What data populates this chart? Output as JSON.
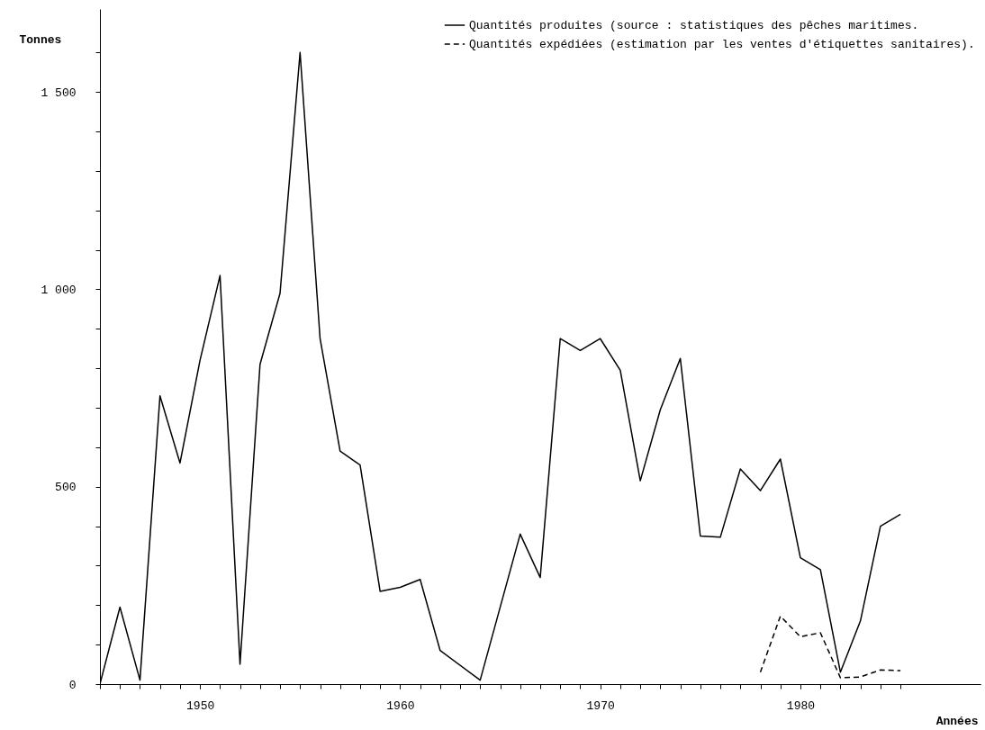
{
  "chart_data": {
    "type": "line",
    "xlabel": "Années",
    "ylabel": "Tonnes",
    "xlim": [
      1945,
      1989
    ],
    "ylim": [
      0,
      1710
    ],
    "xticks": [
      {
        "value": 1945,
        "label": null
      },
      {
        "value": 1946,
        "label": null
      },
      {
        "value": 1947,
        "label": null
      },
      {
        "value": 1948,
        "label": null
      },
      {
        "value": 1949,
        "label": null
      },
      {
        "value": 1950,
        "label": "1950"
      },
      {
        "value": 1951,
        "label": null
      },
      {
        "value": 1952,
        "label": null
      },
      {
        "value": 1953,
        "label": null
      },
      {
        "value": 1954,
        "label": null
      },
      {
        "value": 1955,
        "label": null
      },
      {
        "value": 1956,
        "label": null
      },
      {
        "value": 1957,
        "label": null
      },
      {
        "value": 1958,
        "label": null
      },
      {
        "value": 1959,
        "label": null
      },
      {
        "value": 1960,
        "label": "1960"
      },
      {
        "value": 1961,
        "label": null
      },
      {
        "value": 1962,
        "label": null
      },
      {
        "value": 1963,
        "label": null
      },
      {
        "value": 1964,
        "label": null
      },
      {
        "value": 1965,
        "label": null
      },
      {
        "value": 1966,
        "label": null
      },
      {
        "value": 1967,
        "label": null
      },
      {
        "value": 1968,
        "label": null
      },
      {
        "value": 1969,
        "label": null
      },
      {
        "value": 1970,
        "label": "1970"
      },
      {
        "value": 1971,
        "label": null
      },
      {
        "value": 1972,
        "label": null
      },
      {
        "value": 1973,
        "label": null
      },
      {
        "value": 1974,
        "label": null
      },
      {
        "value": 1975,
        "label": null
      },
      {
        "value": 1976,
        "label": null
      },
      {
        "value": 1977,
        "label": null
      },
      {
        "value": 1978,
        "label": null
      },
      {
        "value": 1979,
        "label": null
      },
      {
        "value": 1980,
        "label": "1980"
      },
      {
        "value": 1981,
        "label": null
      },
      {
        "value": 1982,
        "label": null
      },
      {
        "value": 1983,
        "label": null
      },
      {
        "value": 1984,
        "label": null
      },
      {
        "value": 1985,
        "label": null
      }
    ],
    "yticks": [
      {
        "value": 0,
        "label": "0"
      },
      {
        "value": 100,
        "label": null
      },
      {
        "value": 200,
        "label": null
      },
      {
        "value": 300,
        "label": null
      },
      {
        "value": 400,
        "label": null
      },
      {
        "value": 500,
        "label": "500"
      },
      {
        "value": 600,
        "label": null
      },
      {
        "value": 700,
        "label": null
      },
      {
        "value": 800,
        "label": null
      },
      {
        "value": 900,
        "label": null
      },
      {
        "value": 1000,
        "label": "1 000"
      },
      {
        "value": 1100,
        "label": null
      },
      {
        "value": 1200,
        "label": null
      },
      {
        "value": 1300,
        "label": null
      },
      {
        "value": 1400,
        "label": null
      },
      {
        "value": 1500,
        "label": "1 500"
      },
      {
        "value": 1600,
        "label": null
      }
    ],
    "grid": false,
    "legend": "top right",
    "marker": "none",
    "series": [
      {
        "name": "Quantités produites (source : statistiques des pêches maritimes.",
        "color": "#000000",
        "line_style": "solid",
        "x": [
          1945,
          1946,
          1947,
          1948,
          1949,
          1950,
          1951,
          1952,
          1953,
          1954,
          1955,
          1956,
          1957,
          1958,
          1959,
          1960,
          1961,
          1962,
          1964,
          1966,
          1967,
          1968,
          1969,
          1970,
          1971,
          1972,
          1973,
          1974,
          1975,
          1976,
          1977,
          1978,
          1979,
          1980,
          1981,
          1982,
          1983,
          1984,
          1985
        ],
        "values": [
          0,
          195,
          10,
          730,
          560,
          820,
          1035,
          50,
          810,
          990,
          1600,
          875,
          590,
          555,
          235,
          245,
          265,
          85,
          10,
          380,
          270,
          875,
          845,
          875,
          795,
          515,
          695,
          825,
          375,
          372,
          545,
          490,
          570,
          320,
          290,
          30,
          160,
          400,
          430
        ]
      },
      {
        "name": "Quantités expédiées (estimation par les ventes d'étiquettes sanitaires).",
        "color": "#000000",
        "line_style": "dashed",
        "x": [
          1978,
          1979,
          1980,
          1981,
          1982,
          1983,
          1984,
          1985
        ],
        "values": [
          30,
          172,
          120,
          130,
          16,
          18,
          36,
          34
        ]
      }
    ]
  }
}
